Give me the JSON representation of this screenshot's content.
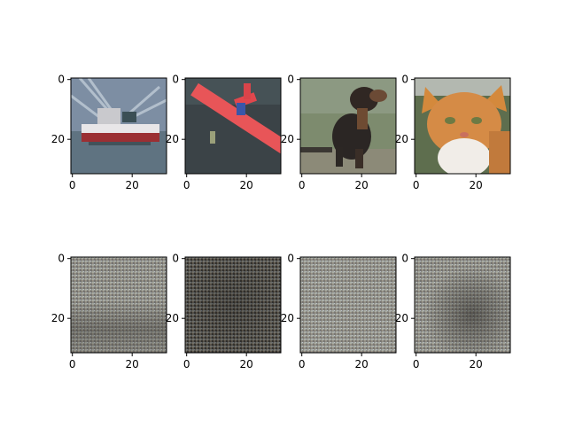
{
  "figure": {
    "rows": 2,
    "cols": 4,
    "axis": {
      "x_ticks": [
        "0",
        "20"
      ],
      "y_ticks": [
        "0",
        "20"
      ],
      "tick_values": [
        0,
        20
      ],
      "data_range": [
        -0.5,
        31.5
      ]
    },
    "panels": [
      {
        "row": 0,
        "col": 0,
        "content": "ship",
        "kind": "original"
      },
      {
        "row": 0,
        "col": 1,
        "content": "airplane",
        "kind": "original"
      },
      {
        "row": 0,
        "col": 2,
        "content": "dog",
        "kind": "original"
      },
      {
        "row": 0,
        "col": 3,
        "content": "cat",
        "kind": "original"
      },
      {
        "row": 1,
        "col": 0,
        "content": "noise-pattern",
        "kind": "reconstruction"
      },
      {
        "row": 1,
        "col": 1,
        "content": "noise-pattern",
        "kind": "reconstruction"
      },
      {
        "row": 1,
        "col": 2,
        "content": "noise-pattern",
        "kind": "reconstruction"
      },
      {
        "row": 1,
        "col": 3,
        "content": "noise-pattern",
        "kind": "reconstruction"
      }
    ]
  }
}
